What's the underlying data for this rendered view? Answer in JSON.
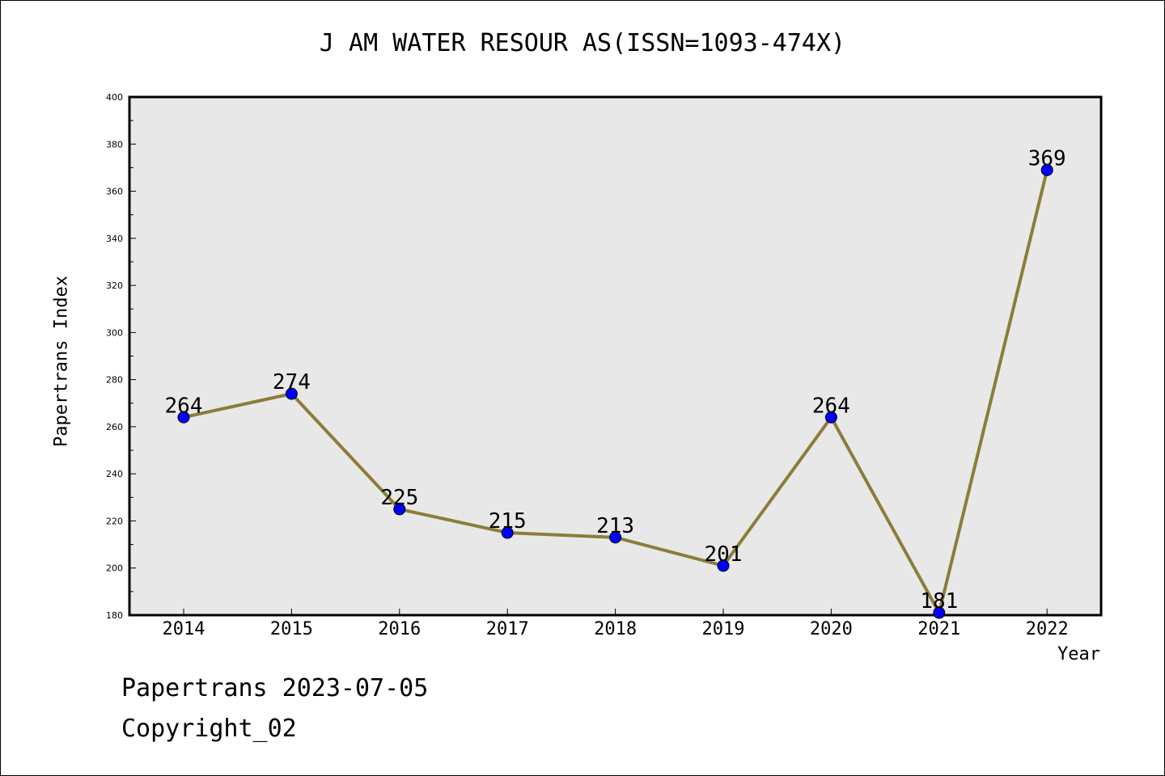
{
  "chart_data": {
    "type": "line",
    "title": "J AM WATER RESOUR AS(ISSN=1093-474X)",
    "xlabel": "Year",
    "ylabel": "Papertrans Index",
    "categories": [
      "2014",
      "2015",
      "2016",
      "2017",
      "2018",
      "2019",
      "2020",
      "2021",
      "2022"
    ],
    "values": [
      264,
      274,
      225,
      215,
      213,
      201,
      264,
      181,
      369
    ],
    "data_labels": [
      "264",
      "274",
      "225",
      "215",
      "213",
      "201",
      "264",
      "181",
      "369"
    ],
    "ylim": [
      180,
      400
    ],
    "yticks": [
      180,
      200,
      220,
      240,
      260,
      280,
      300,
      320,
      340,
      360,
      380,
      400
    ],
    "grid": false,
    "line_color": "#8b7d3a",
    "marker_color": "#0000ff",
    "plot_bg": "#e8e8e8"
  },
  "footer": {
    "line1": "Papertrans 2023-07-05",
    "line2": "Copyright_02"
  }
}
